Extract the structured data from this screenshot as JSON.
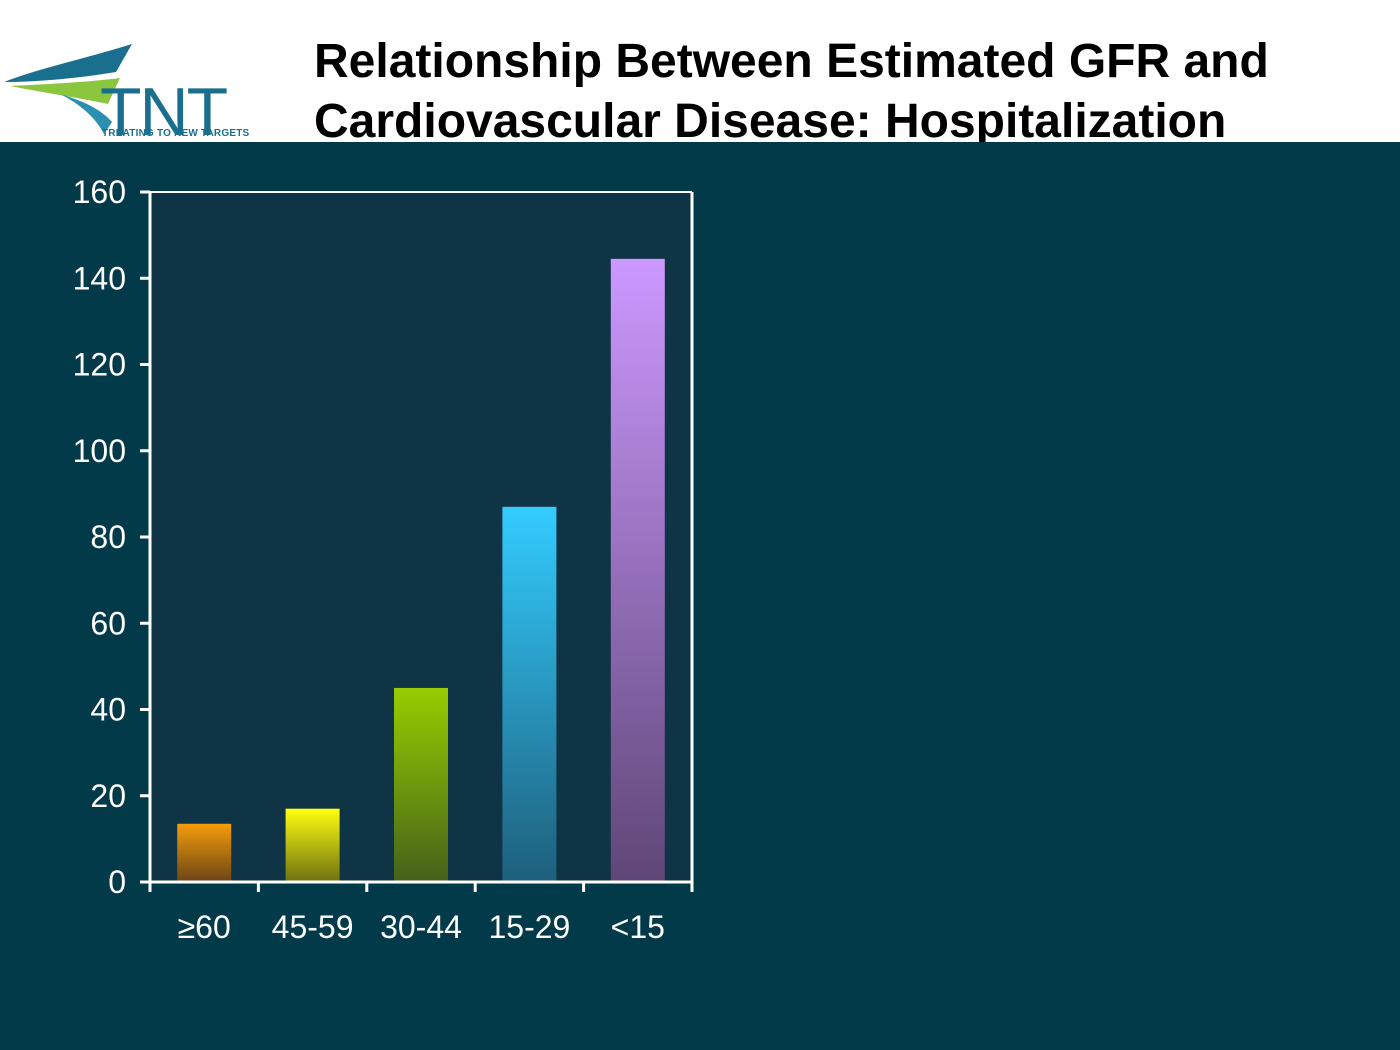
{
  "header": {
    "logo": {
      "wordmark": "TNT",
      "tagline": "TREATING TO NEW TARGETS"
    },
    "title_line1": "Relationship Between Estimated GFR and",
    "title_line2": "Cardiovascular Disease: Hospitalization"
  },
  "colors": {
    "panel_background": "#023a4a",
    "plot_background": "#0e3445",
    "axis": "#ffffff",
    "brand_blue": "#1a6f8f",
    "brand_green": "#8cc63f"
  },
  "chart_data": {
    "type": "bar",
    "categories": [
      "≥60",
      "45-59",
      "30-44",
      "15-29",
      "<15"
    ],
    "values": [
      13.5,
      17,
      45,
      87,
      144.5
    ],
    "title": "",
    "xlabel": "",
    "ylabel": "",
    "ylim": [
      0,
      160
    ],
    "yticks": [
      0,
      20,
      40,
      60,
      80,
      100,
      120,
      140,
      160
    ],
    "grid": false,
    "legend": "none",
    "bar_colors": [
      {
        "top": "#f59d0a",
        "bottom": "#6a4416"
      },
      {
        "top": "#ffff10",
        "bottom": "#6f7012"
      },
      {
        "top": "#99cc00",
        "bottom": "#45611a"
      },
      {
        "top": "#33ccff",
        "bottom": "#1e5f7c"
      },
      {
        "top": "#cc99ff",
        "bottom": "#5f4677"
      }
    ]
  }
}
